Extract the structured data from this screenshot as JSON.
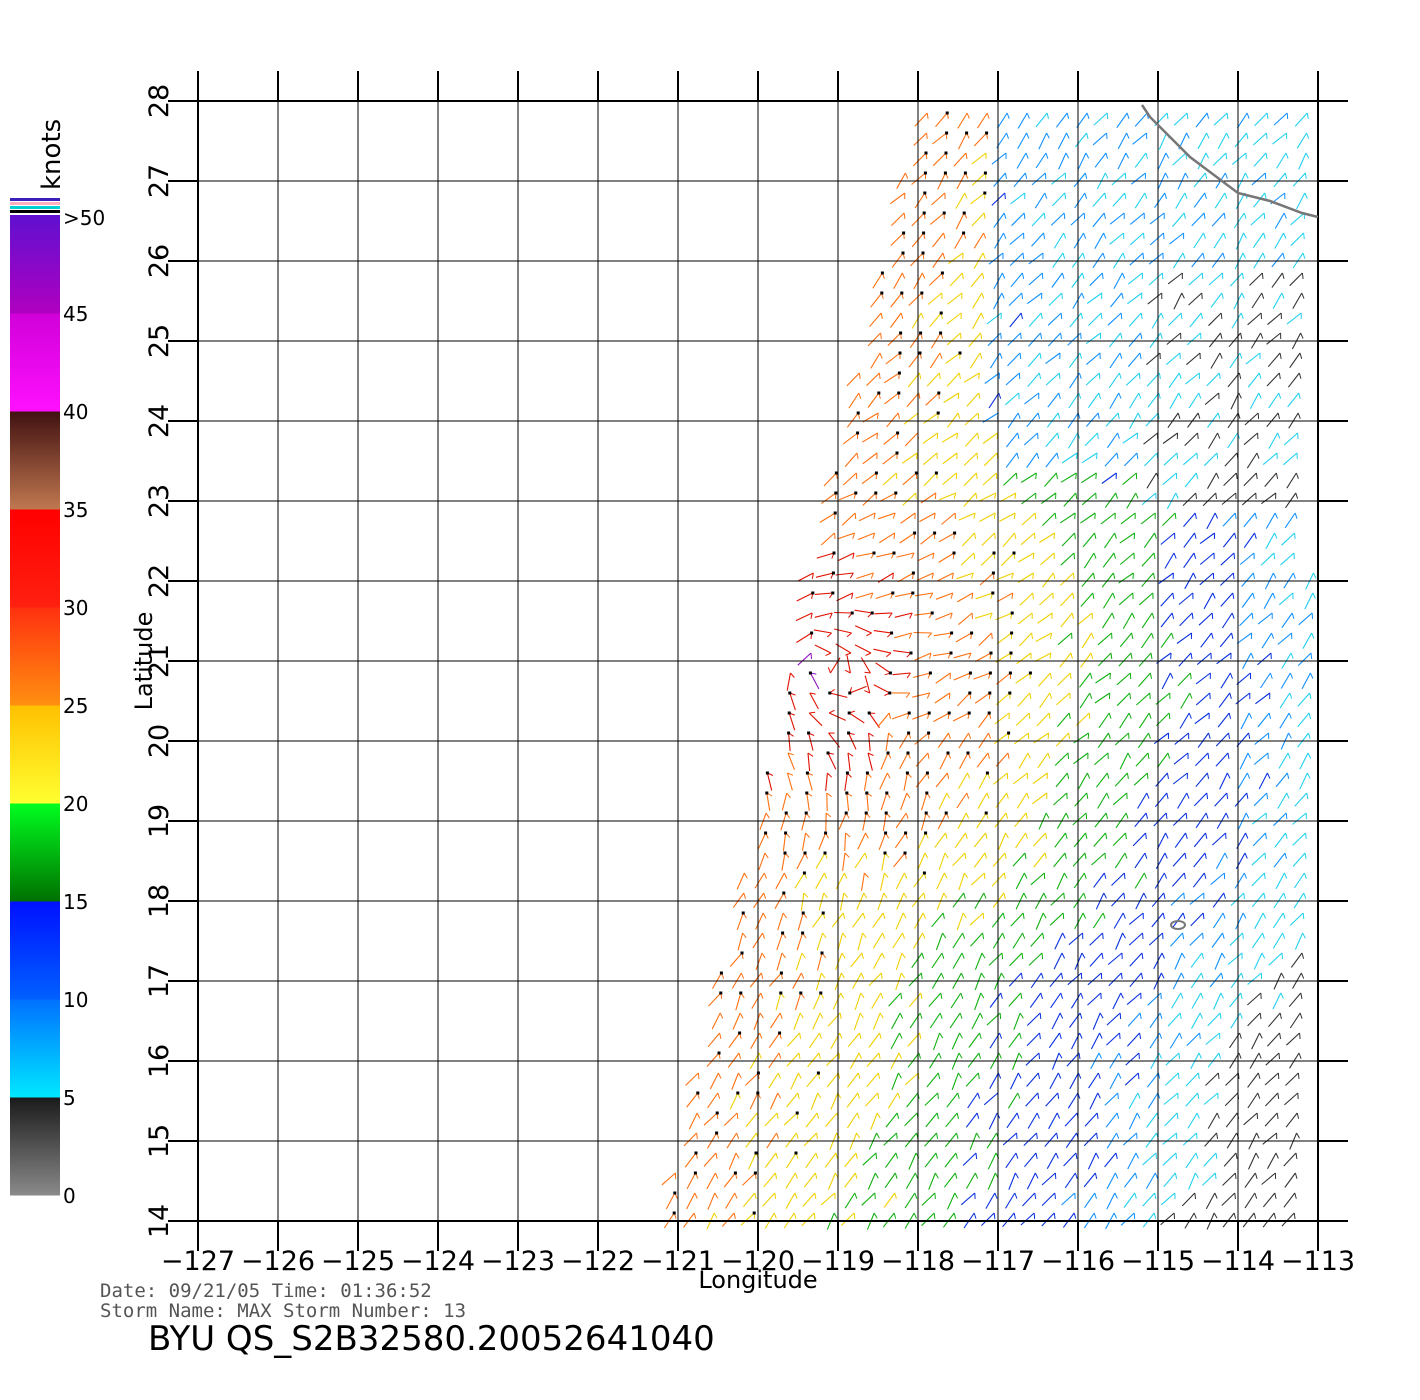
{
  "map": {
    "x_axis": {
      "label": "Longitude",
      "ticks": [
        -127,
        -126,
        -125,
        -124,
        -123,
        -122,
        -121,
        -120,
        -119,
        -118,
        -117,
        -116,
        -115,
        -114,
        -113
      ],
      "tick_labels": [
        "−127",
        "−126",
        "−125",
        "−124",
        "−123",
        "−122",
        "−121",
        "−120",
        "−119",
        "−118",
        "−117",
        "−116",
        "−115",
        "−114",
        "−113"
      ],
      "range": [
        -127,
        -113
      ]
    },
    "y_axis": {
      "label": "Latitude",
      "ticks": [
        14,
        15,
        16,
        17,
        18,
        19,
        20,
        21,
        22,
        23,
        24,
        25,
        26,
        27,
        28
      ],
      "tick_labels": [
        "14",
        "15",
        "16",
        "17",
        "18",
        "19",
        "20",
        "21",
        "22",
        "23",
        "24",
        "25",
        "26",
        "27",
        "28"
      ],
      "range": [
        14,
        28
      ]
    },
    "grid": true
  },
  "colorbar": {
    "title": "knots",
    "labels": [
      ">50",
      "45",
      "40",
      "35",
      "30",
      "25",
      "20",
      "15",
      "10",
      "5",
      "0"
    ],
    "bins": [
      {
        "from": 0,
        "to": 5,
        "colors": [
          "#8a8a8a",
          "#1a1a1a"
        ]
      },
      {
        "from": 5,
        "to": 10,
        "colors": [
          "#00e8ff",
          "#0070ff"
        ]
      },
      {
        "from": 10,
        "to": 15,
        "colors": [
          "#0060ff",
          "#0010ff"
        ]
      },
      {
        "from": 15,
        "to": 20,
        "colors": [
          "#007000",
          "#00ff20"
        ]
      },
      {
        "from": 20,
        "to": 25,
        "colors": [
          "#ffff30",
          "#ffc000"
        ]
      },
      {
        "from": 25,
        "to": 30,
        "colors": [
          "#ff9010",
          "#ff3010"
        ]
      },
      {
        "from": 30,
        "to": 35,
        "colors": [
          "#ff2010",
          "#ff0000"
        ]
      },
      {
        "from": 35,
        "to": 40,
        "colors": [
          "#c07850",
          "#401010"
        ]
      },
      {
        "from": 40,
        "to": 45,
        "colors": [
          "#ff10ff",
          "#d000d8"
        ]
      },
      {
        "from": 45,
        "to": 50,
        "colors": [
          "#b000c0",
          "#6010d0"
        ]
      }
    ],
    "over_colors": [
      "#3c1fb8",
      "#ffb0c0",
      "#00d0d0",
      "#000000"
    ]
  },
  "footer": {
    "line1": "Date: 09/21/05   Time: 01:36:52",
    "line2": "Storm  Name: MAX    Storm  Number: 13",
    "product": "BYU  QS_S2B32580.20052641040"
  },
  "swath": {
    "corners": [
      [
        -121.2,
        14.0
      ],
      [
        -118.0,
        28.0
      ],
      [
        -113.0,
        28.0
      ],
      [
        -113.0,
        14.0
      ]
    ],
    "grid_step_deg": 0.25
  },
  "coastline": [
    [
      -115.2,
      27.95
    ],
    [
      -115.1,
      27.8
    ],
    [
      -114.9,
      27.6
    ],
    [
      -114.6,
      27.3
    ],
    [
      -114.2,
      27.0
    ],
    [
      -114.0,
      26.85
    ],
    [
      -113.6,
      26.75
    ],
    [
      -113.2,
      26.6
    ],
    [
      -113.0,
      26.55
    ]
  ]
}
